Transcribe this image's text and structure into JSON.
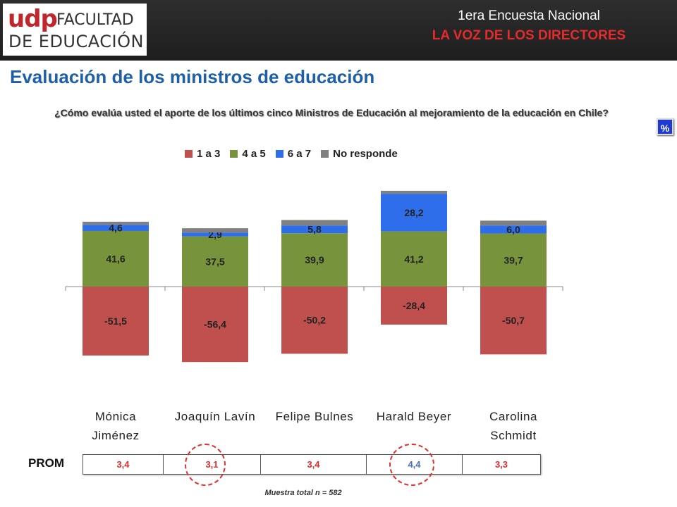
{
  "header": {
    "logo_brand": "udp",
    "logo_line1": "FACULTAD",
    "logo_line2": "DE EDUCACIÓN",
    "survey_line1": "1era Encuesta Nacional",
    "survey_line2": "LA VOZ DE LOS DIRECTORES"
  },
  "page_title": "Evaluación de los ministros de educación",
  "question": "¿Cómo evalúa usted el aporte de los últimos cinco Ministros de Educación al mejoramiento de la educación en Chile?",
  "percent_button": "%",
  "chart_data": {
    "type": "bar",
    "stacked": true,
    "categories": [
      "Mónica Jiménez",
      "Joaquín Lavín",
      "Felipe Bulnes",
      "Harald Beyer",
      "Carolina Schmidt"
    ],
    "series": [
      {
        "name": "1 a 3",
        "color": "#c0504d",
        "values": [
          -51.5,
          -56.4,
          -50.2,
          -28.4,
          -50.7
        ],
        "labels": [
          "-51,5",
          "-56,4",
          "-50,2",
          "-28,4",
          "-50,7"
        ]
      },
      {
        "name": "4 a 5",
        "color": "#77933c",
        "values": [
          41.6,
          37.5,
          39.9,
          41.2,
          39.7
        ],
        "labels": [
          "41,6",
          "37,5",
          "39,9",
          "41,2",
          "39,7"
        ]
      },
      {
        "name": "6 a 7",
        "color": "#2f6eea",
        "values": [
          4.6,
          2.9,
          5.8,
          28.2,
          6.0
        ],
        "labels": [
          "4,6",
          "2,9",
          "5,8",
          "28,2",
          "6,0"
        ]
      },
      {
        "name": "No responde",
        "color": "#808080",
        "values": [
          2.3,
          3.2,
          4.1,
          2.2,
          3.6
        ],
        "labels": [
          "",
          "",
          "",
          "",
          ""
        ]
      }
    ],
    "legend_position": "top",
    "grid": false
  },
  "names": [
    "Mónica\nJiménez",
    "Joaquín Lavín",
    "Felipe Bulnes",
    "Harald Beyer",
    "Carolina\nSchmidt"
  ],
  "prom": {
    "label": "PROM",
    "values": [
      "3,4",
      "3,1",
      "3,4",
      "4,4",
      "3,3"
    ],
    "colors": [
      "#e02a2a",
      "#e02a2a",
      "#e02a2a",
      "#4a6fb5",
      "#e02a2a"
    ]
  },
  "sample_note": "Muestra total n = 582"
}
